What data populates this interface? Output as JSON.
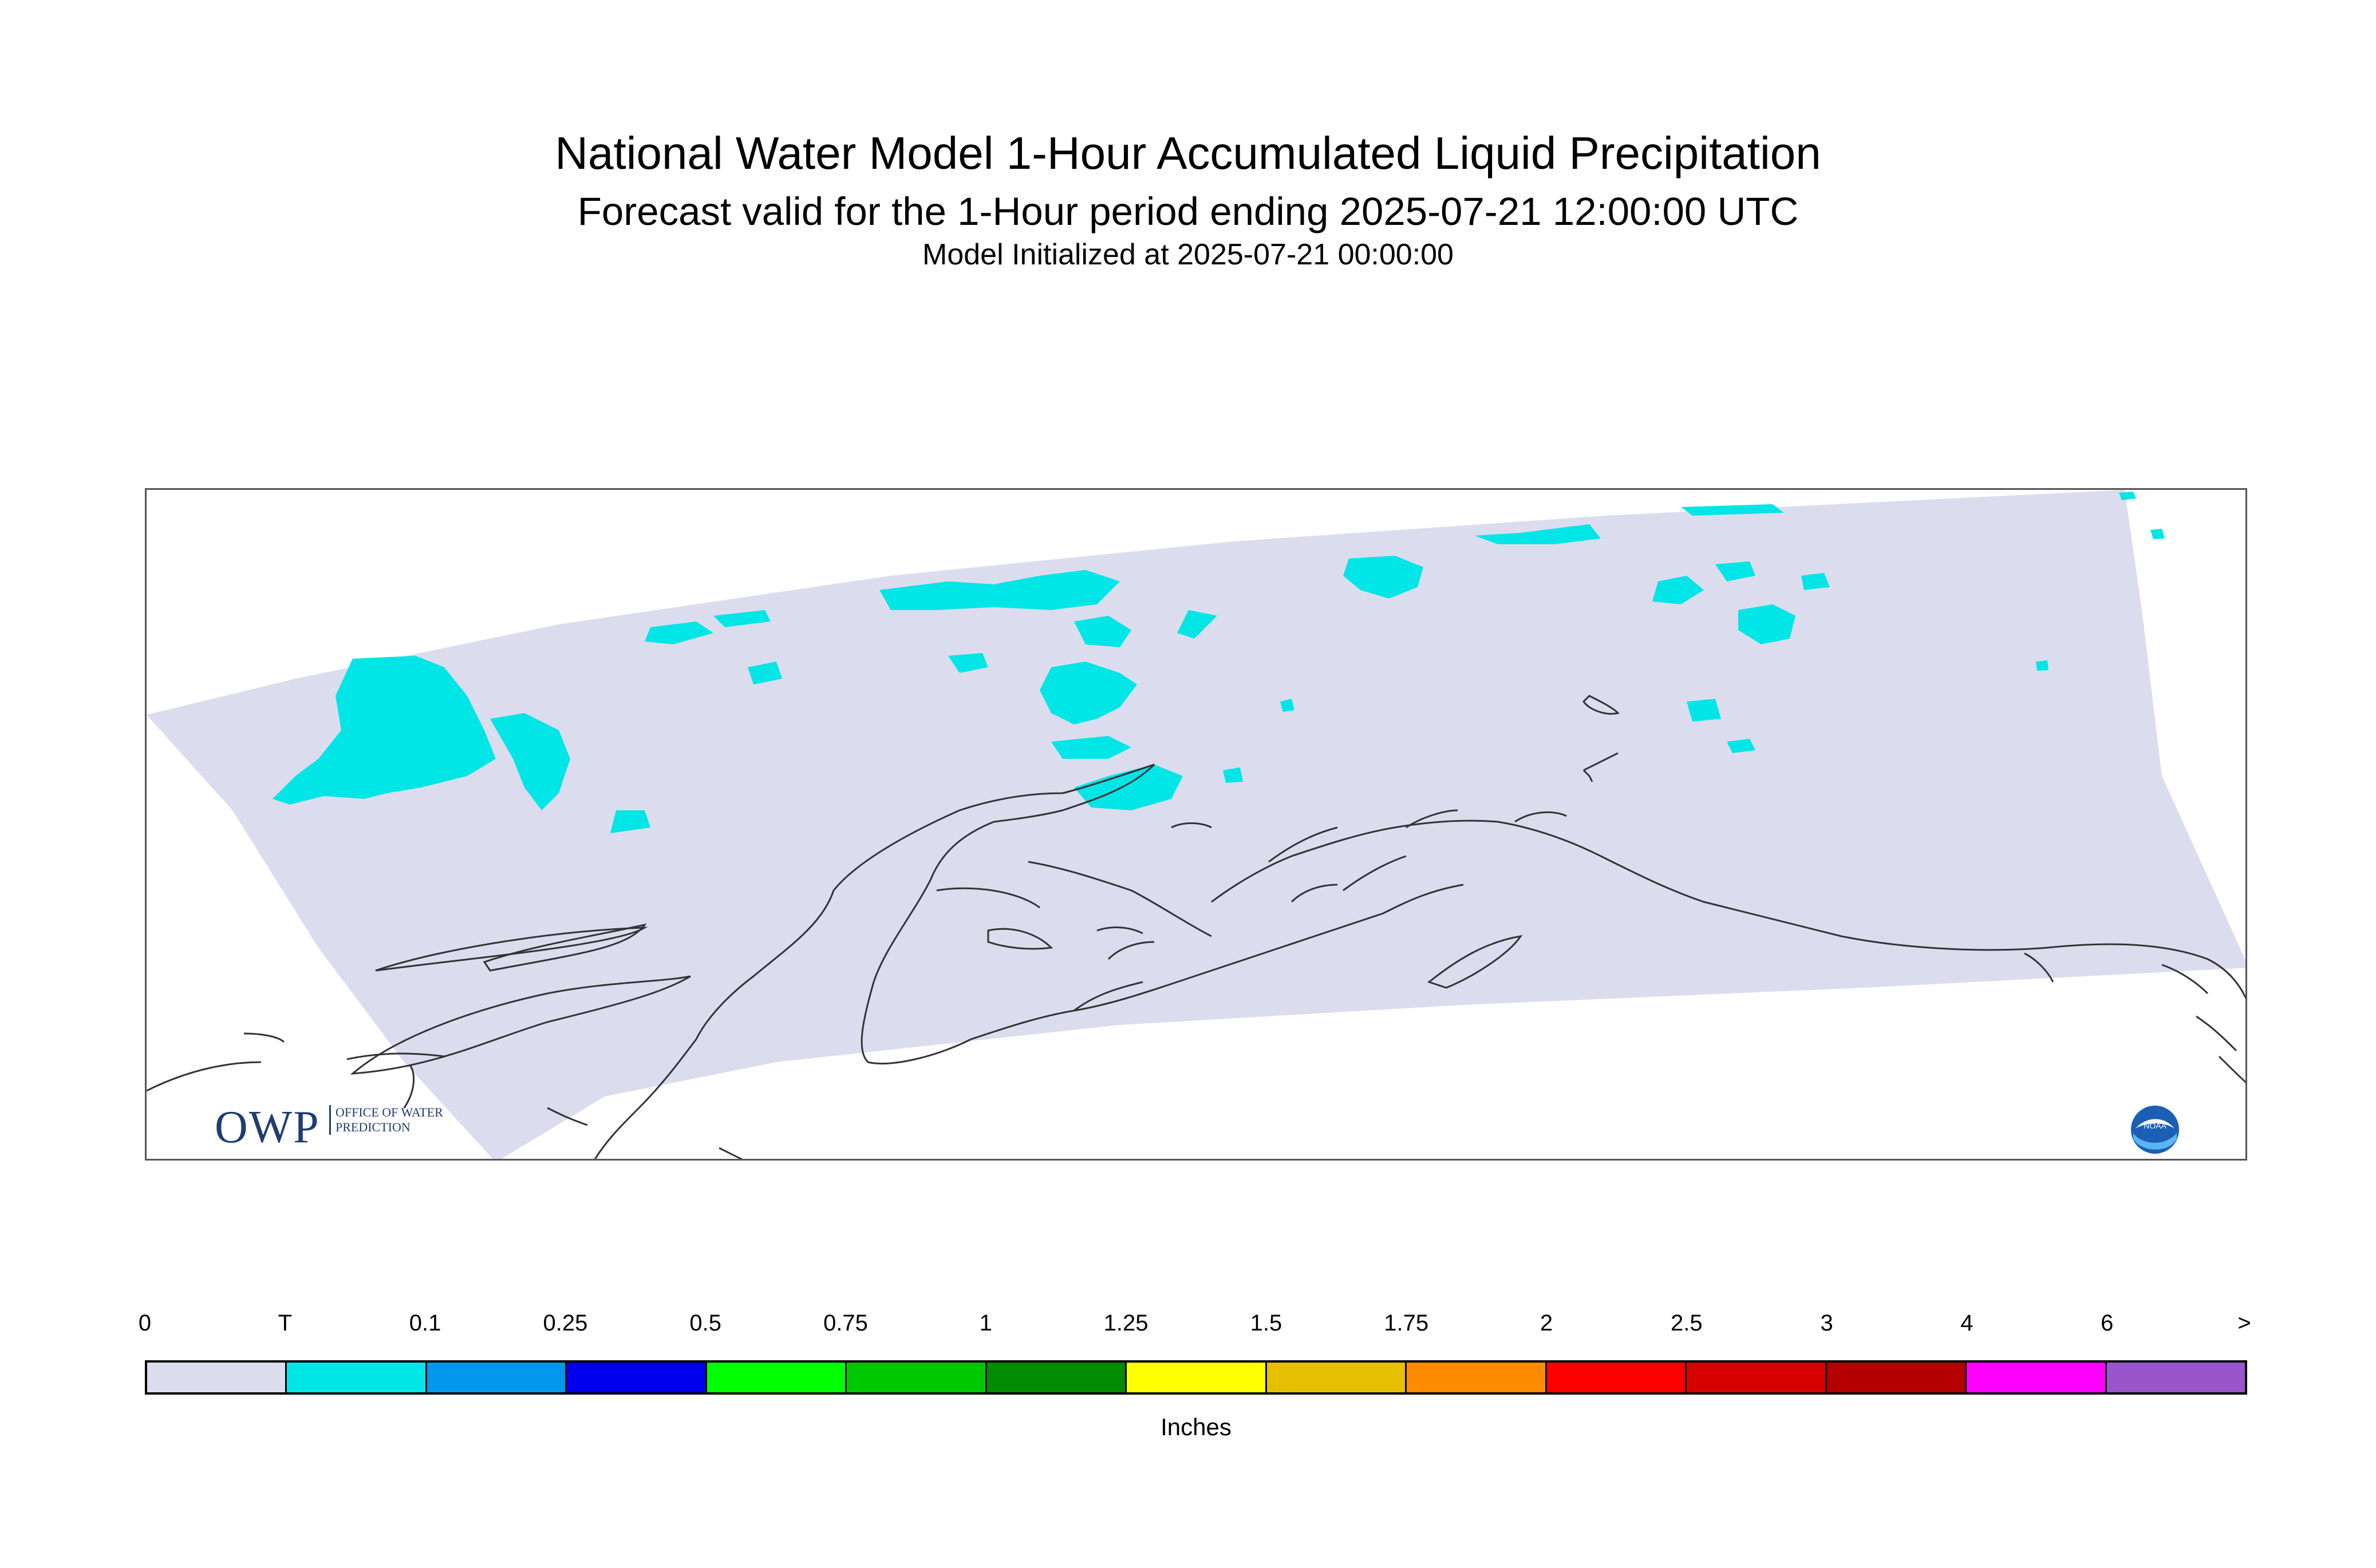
{
  "title": "National Water Model 1-Hour Accumulated Liquid Precipitation",
  "subtitle": "Forecast valid for the 1-Hour period ending 2025-07-21 12:00:00 UTC",
  "initialized": "Model Initialized at 2025-07-21 00:00:00",
  "logos": {
    "owp_letters": "OWP",
    "owp_text": "OFFICE OF WATER PREDICTION",
    "noaa_text": "NOAA"
  },
  "legend": {
    "units": "Inches",
    "ticks": [
      "0",
      "T",
      "0.1",
      "0.25",
      "0.5",
      "0.75",
      "1",
      "1.25",
      "1.5",
      "1.75",
      "2",
      "2.5",
      "3",
      "4",
      "6",
      ">"
    ],
    "colors": [
      "#dcdcef",
      "#00e6e6",
      "#0099ee",
      "#0000ee",
      "#00ff00",
      "#00c800",
      "#008c00",
      "#ffff00",
      "#e6c000",
      "#ff8c00",
      "#ff0000",
      "#d60000",
      "#b40000",
      "#ff00ff",
      "#9955cc"
    ]
  },
  "map": {
    "region": "Alaska",
    "domain_fill": "#dcdcef",
    "trace_fill": "#00e6e6",
    "coastline_color": "#333333"
  }
}
